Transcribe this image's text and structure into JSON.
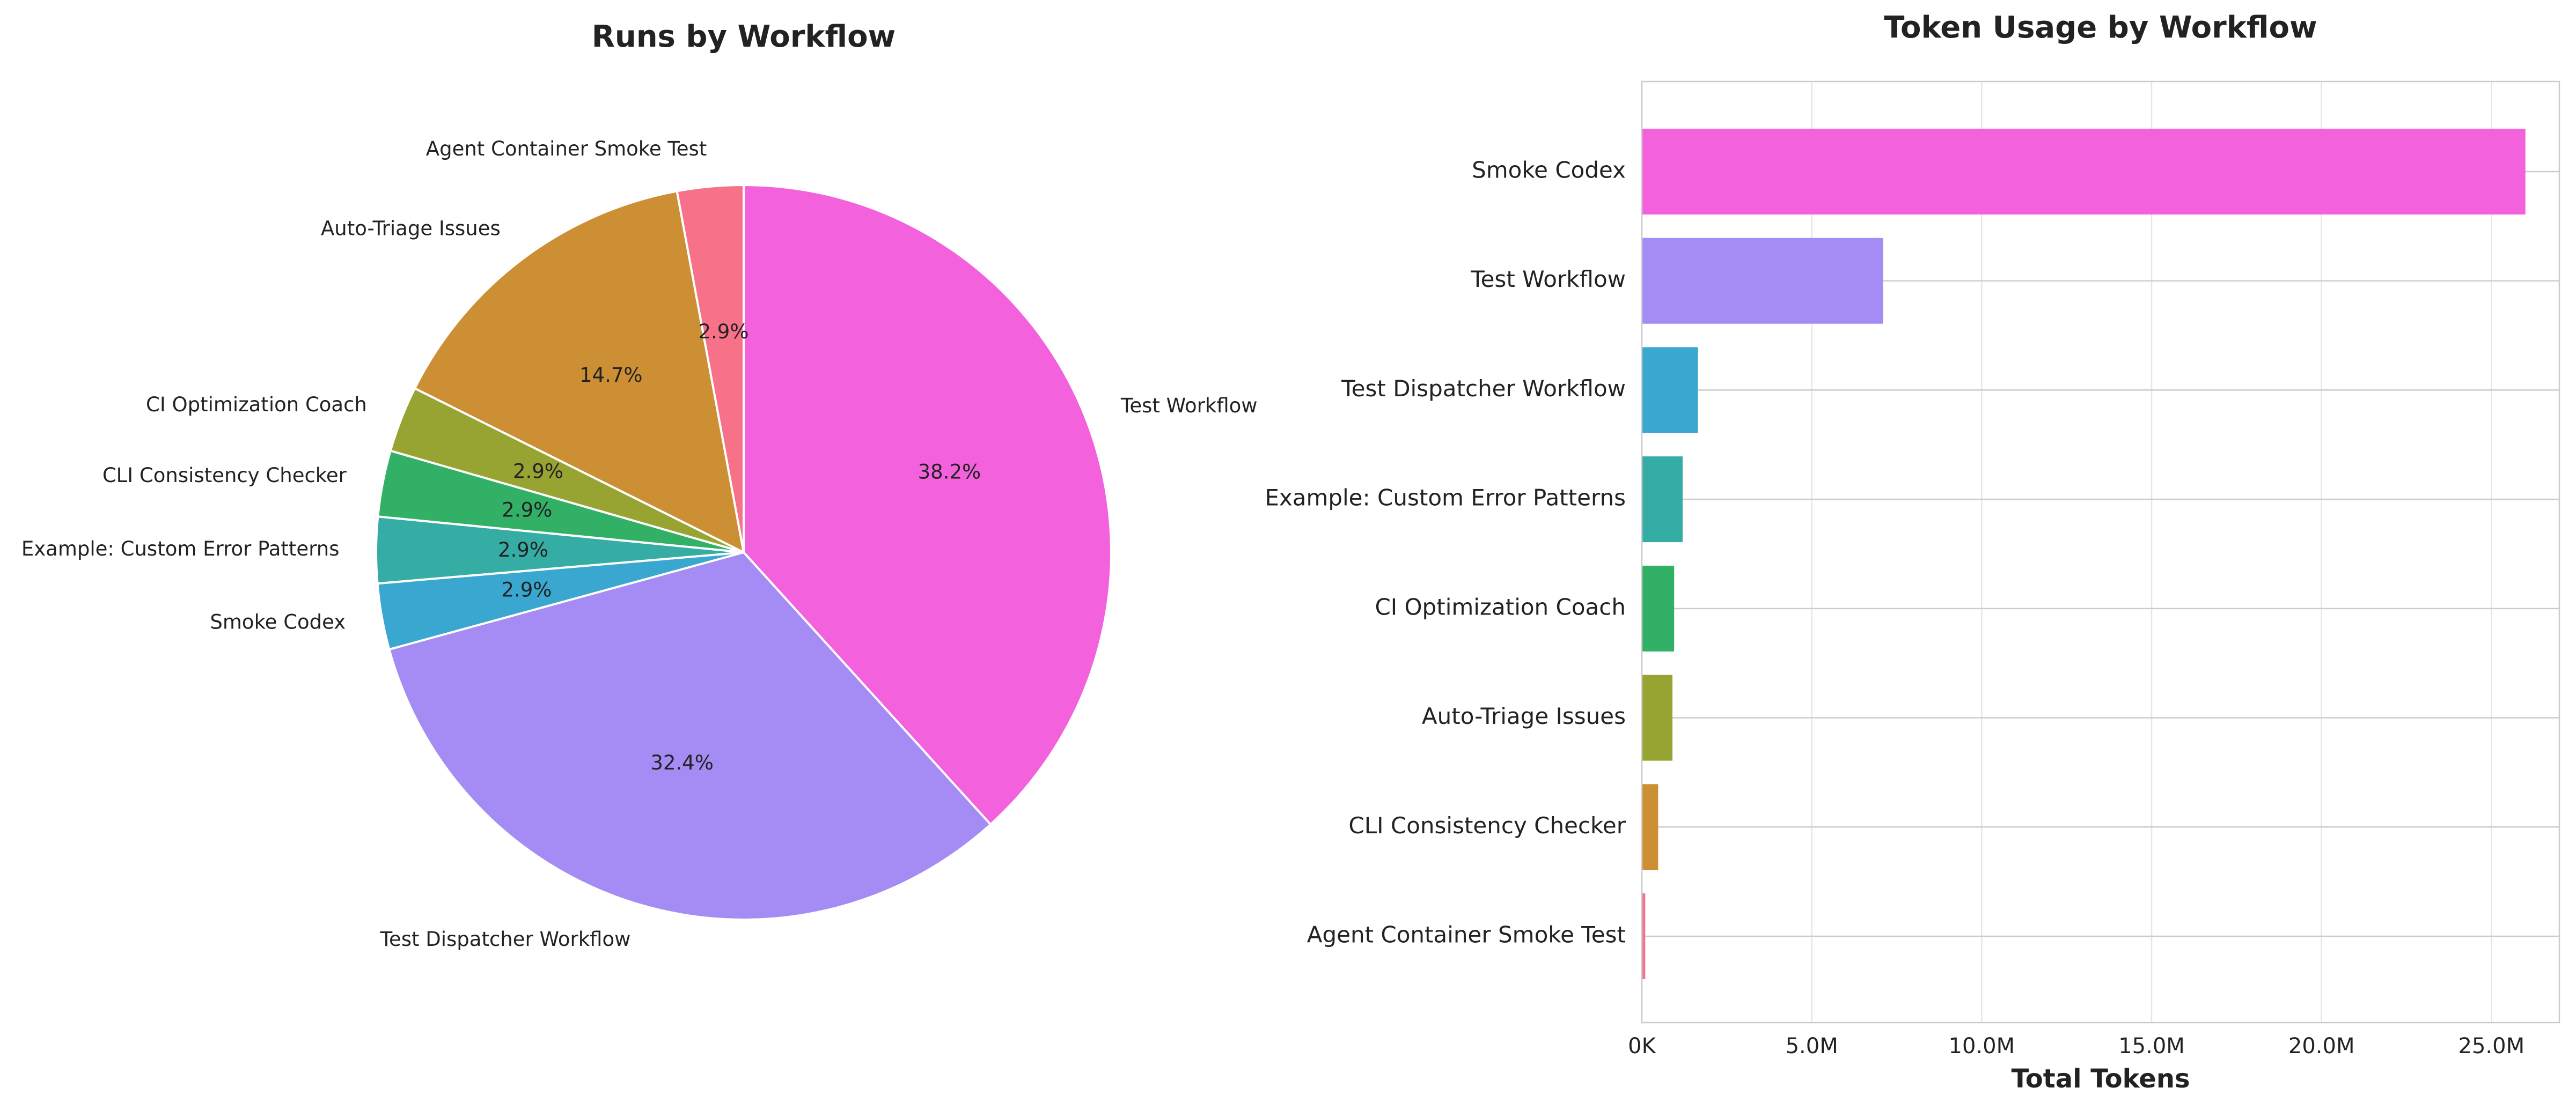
{
  "chart_data": [
    {
      "type": "pie",
      "title": "Runs by Workflow",
      "start_angle_deg": 90,
      "direction": "clockwise",
      "slices": [
        {
          "label": "Test Workflow",
          "value": 38.2,
          "pct_label": "38.2%",
          "color": "#f461dd"
        },
        {
          "label": "Test Dispatcher Workflow",
          "value": 32.4,
          "pct_label": "32.4%",
          "color": "#a48cf4"
        },
        {
          "label": "Smoke Codex",
          "value": 2.9,
          "pct_label": "2.9%",
          "color": "#39a7d0"
        },
        {
          "label": "Example: Custom Error Patterns",
          "value": 2.9,
          "pct_label": "2.9%",
          "color": "#36ada4"
        },
        {
          "label": "CLI Consistency Checker",
          "value": 2.9,
          "pct_label": "2.9%",
          "color": "#32b166"
        },
        {
          "label": "CI Optimization Coach",
          "value": 2.9,
          "pct_label": "2.9%",
          "color": "#97a431"
        },
        {
          "label": "Auto-Triage Issues",
          "value": 14.7,
          "pct_label": "14.7%",
          "color": "#cc8f34"
        },
        {
          "label": "Agent Container Smoke Test",
          "value": 2.9,
          "pct_label": "2.9%",
          "color": "#f77189"
        }
      ]
    },
    {
      "type": "bar",
      "orientation": "horizontal",
      "title": "Token Usage by Workflow",
      "xlabel": "Total Tokens",
      "ylabel": "",
      "xlim": [
        0,
        27000000
      ],
      "xticks": [
        {
          "value": 0,
          "label": "0K"
        },
        {
          "value": 5000000,
          "label": "5.0M"
        },
        {
          "value": 10000000,
          "label": "10.0M"
        },
        {
          "value": 15000000,
          "label": "15.0M"
        },
        {
          "value": 20000000,
          "label": "20.0M"
        },
        {
          "value": 25000000,
          "label": "25.0M"
        }
      ],
      "grid": true,
      "bars": [
        {
          "label": "Smoke Codex",
          "value": 26000000,
          "color": "#f461dd"
        },
        {
          "label": "Test Workflow",
          "value": 7100000,
          "color": "#a48cf4"
        },
        {
          "label": "Test Dispatcher Workflow",
          "value": 1650000,
          "color": "#39a7d0"
        },
        {
          "label": "Example: Custom Error Patterns",
          "value": 1200000,
          "color": "#36ada4"
        },
        {
          "label": "CI Optimization Coach",
          "value": 950000,
          "color": "#32b166"
        },
        {
          "label": "Auto-Triage Issues",
          "value": 900000,
          "color": "#97a431"
        },
        {
          "label": "CLI Consistency Checker",
          "value": 480000,
          "color": "#cc8f34"
        },
        {
          "label": "Agent Container Smoke Test",
          "value": 100000,
          "color": "#f77189"
        }
      ]
    }
  ]
}
